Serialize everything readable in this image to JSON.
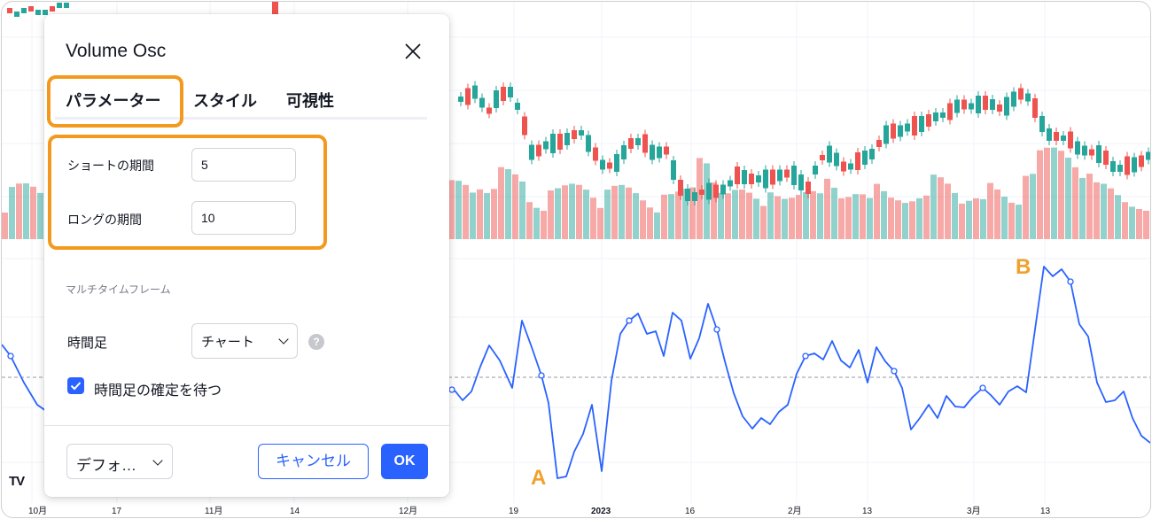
{
  "x_axis": {
    "labels": [
      "10月",
      "17",
      "11月",
      "14",
      "12月",
      "19",
      "2023",
      "16",
      "2月",
      "13",
      "3月",
      "13"
    ],
    "bold_label": "2023"
  },
  "annotations": {
    "point_a": "A",
    "point_b": "B"
  },
  "logo_text": "TV",
  "dialog": {
    "title": "Volume Osc",
    "tabs": [
      {
        "label": "パラメーター",
        "active": true
      },
      {
        "label": "スタイル",
        "active": false
      },
      {
        "label": "可視性",
        "active": false
      }
    ],
    "inputs": {
      "short_label": "ショートの期間",
      "short_value": "5",
      "long_label": "ロングの期間",
      "long_value": "10"
    },
    "multi_timeframe": {
      "section_title": "マルチタイムフレーム",
      "timeframe_label": "時間足",
      "timeframe_value": "チャート",
      "help": "?",
      "confirm_label": "時間足の確定を待つ",
      "confirm_checked": true
    },
    "footer": {
      "defaults_label": "デフォ…",
      "cancel_label": "キャンセル",
      "ok_label": "OK"
    }
  },
  "colors": {
    "accent": "#2962ff",
    "highlight": "#f39a1e",
    "candle_up": "#26a69a",
    "candle_down": "#ef5350",
    "oscillator_line": "#2962ff",
    "annotation": "#f0a02c"
  }
}
